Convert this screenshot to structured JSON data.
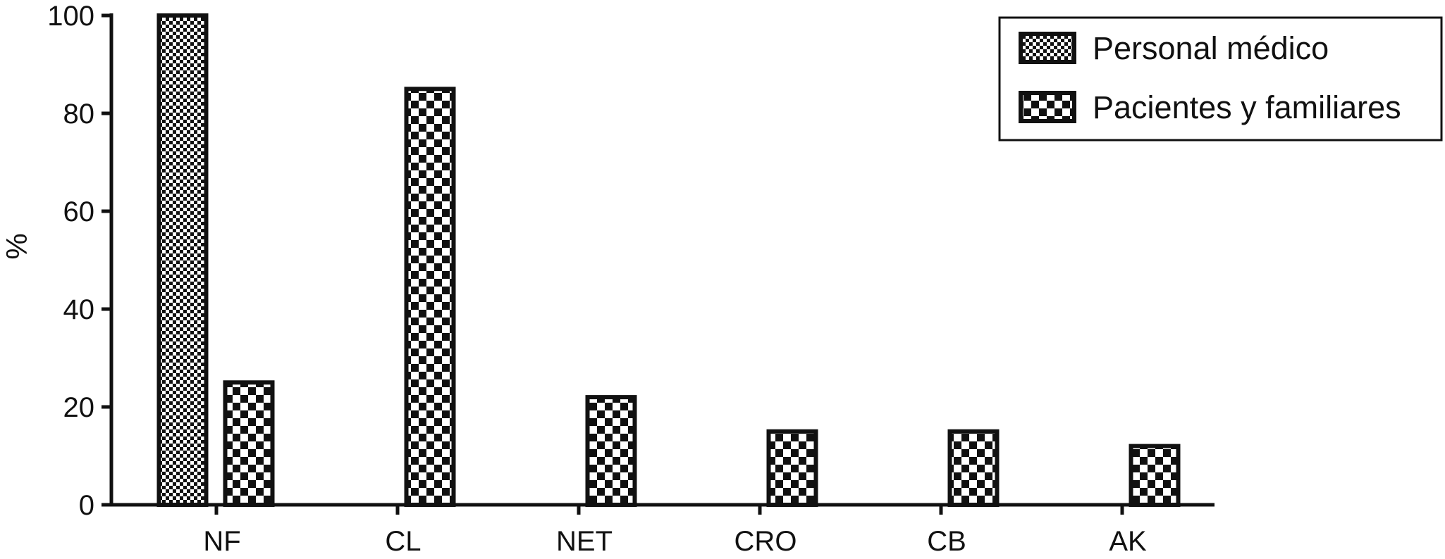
{
  "chart_data": {
    "type": "bar",
    "title": "",
    "xlabel": "",
    "ylabel": "%",
    "ylim": [
      0,
      100
    ],
    "yticks": [
      0,
      20,
      40,
      60,
      80,
      100
    ],
    "categories": [
      "NF",
      "CL",
      "NET",
      "CRO",
      "CB",
      "AK"
    ],
    "series": [
      {
        "name": "Personal médico",
        "values": [
          100,
          0,
          0,
          0,
          0,
          0
        ],
        "pattern": "fine-checker"
      },
      {
        "name": "Pacientes y familiares",
        "values": [
          25,
          85,
          22,
          15,
          15,
          12
        ],
        "pattern": "coarse-checker"
      }
    ],
    "legend": "top-right",
    "grid": false,
    "colors": {
      "ink": "#111111",
      "background": "#ffffff"
    }
  }
}
